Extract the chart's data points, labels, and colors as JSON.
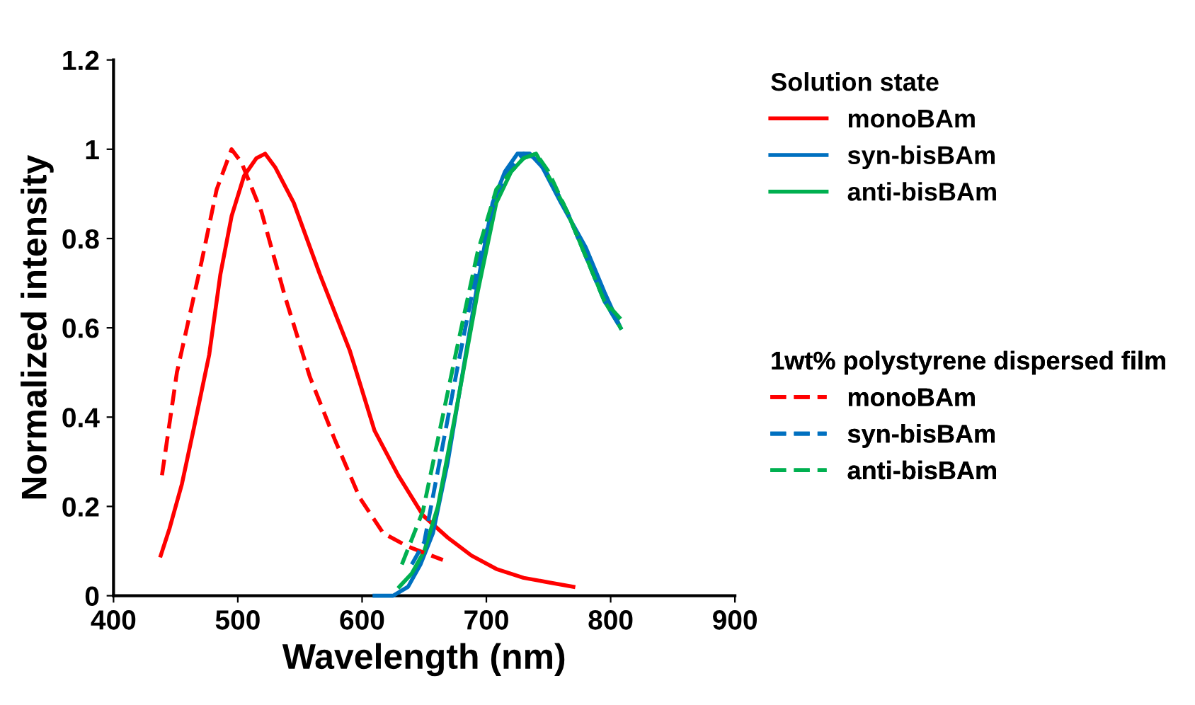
{
  "chart_data": {
    "type": "line",
    "xlabel": "Wavelength (nm)",
    "ylabel": "Normalized intensity",
    "xlim": [
      400,
      900
    ],
    "xticks": [
      400,
      500,
      600,
      700,
      800,
      900
    ],
    "ylim": [
      0,
      1.2
    ],
    "yticks": [
      0,
      0.2,
      0.4,
      0.6,
      0.8,
      1,
      1.2
    ],
    "grid": false,
    "legend": "right",
    "marker": "none",
    "legend_title": [
      "Solution state",
      "1wt% polystyrene dispersed film"
    ],
    "series": [
      {
        "name": "monoBAm",
        "color": "#ff0000",
        "line_style": "solid",
        "x": [
          438,
          445,
          455,
          465,
          477,
          486,
          495,
          505,
          515,
          522,
          530,
          545,
          566,
          590,
          610,
          629,
          649,
          669,
          688,
          708,
          730,
          750,
          770
        ],
        "values": [
          0.09,
          0.15,
          0.25,
          0.38,
          0.54,
          0.72,
          0.85,
          0.94,
          0.98,
          0.99,
          0.96,
          0.88,
          0.72,
          0.55,
          0.37,
          0.27,
          0.18,
          0.13,
          0.09,
          0.06,
          0.04,
          0.03,
          0.02
        ]
      },
      {
        "name": "syn-bisBAm",
        "color": "#0070c0",
        "line_style": "solid",
        "x": [
          610,
          625,
          637,
          647,
          657,
          669,
          681,
          693,
          705,
          715,
          725,
          735,
          745,
          760,
          780,
          795,
          808
        ],
        "values": [
          0.0,
          0.0,
          0.02,
          0.07,
          0.14,
          0.3,
          0.5,
          0.7,
          0.88,
          0.95,
          0.99,
          0.99,
          0.96,
          0.88,
          0.78,
          0.68,
          0.6
        ]
      },
      {
        "name": "anti-bisBAm",
        "color": "#00b050",
        "line_style": "solid",
        "x": [
          630,
          640,
          650,
          661,
          676,
          693,
          708,
          720,
          730,
          740,
          750,
          765,
          780,
          795,
          808
        ],
        "values": [
          0.02,
          0.05,
          0.1,
          0.2,
          0.42,
          0.68,
          0.88,
          0.95,
          0.98,
          0.99,
          0.94,
          0.86,
          0.76,
          0.66,
          0.6
        ]
      },
      {
        "name": "monoBAm",
        "color": "#ff0000",
        "line_style": "dashed",
        "x": [
          439,
          451,
          471,
          483,
          495,
          503,
          519,
          538,
          558,
          578,
          598,
          617,
          637,
          665
        ],
        "values": [
          0.27,
          0.5,
          0.75,
          0.91,
          1.0,
          0.97,
          0.86,
          0.67,
          0.49,
          0.35,
          0.22,
          0.14,
          0.11,
          0.08
        ]
      },
      {
        "name": "syn-bisBAm",
        "color": "#0070c0",
        "line_style": "dashed",
        "x": [
          640,
          650,
          661,
          676,
          693,
          708,
          720,
          730,
          740,
          750,
          765,
          780,
          795,
          808
        ],
        "values": [
          0.07,
          0.12,
          0.28,
          0.5,
          0.74,
          0.9,
          0.96,
          0.99,
          0.98,
          0.94,
          0.86,
          0.76,
          0.66,
          0.6
        ]
      },
      {
        "name": "anti-bisBAm",
        "color": "#00b050",
        "line_style": "dashed",
        "x": [
          632,
          649,
          661,
          676,
          693,
          708,
          720,
          730,
          740,
          750,
          765,
          780,
          795,
          808
        ],
        "values": [
          0.07,
          0.19,
          0.35,
          0.55,
          0.77,
          0.91,
          0.95,
          0.98,
          0.99,
          0.95,
          0.86,
          0.76,
          0.66,
          0.62
        ]
      }
    ]
  }
}
